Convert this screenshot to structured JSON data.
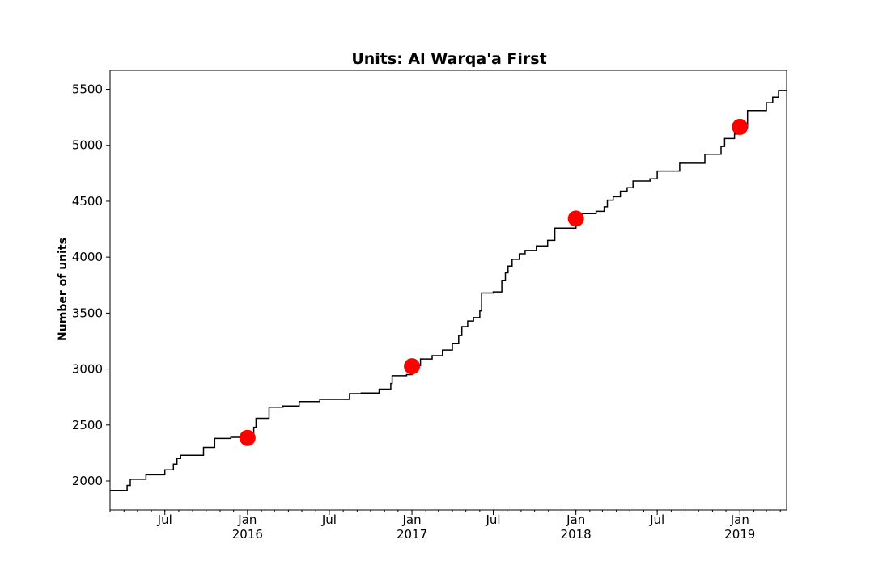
{
  "chart_data": {
    "type": "line",
    "title": "Units: Al Warqa'a First",
    "xlabel": "",
    "ylabel": "Number of units",
    "xlim": [
      "2015-03-01",
      "2019-04-15"
    ],
    "ylim": [
      1740,
      5670
    ],
    "yticks": [
      2000,
      2500,
      3000,
      3500,
      4000,
      4500,
      5000,
      5500
    ],
    "xticks": [
      {
        "date": "2015-07-01",
        "label": "Jul",
        "sublabel": ""
      },
      {
        "date": "2016-01-01",
        "label": "Jan",
        "sublabel": "2016"
      },
      {
        "date": "2016-07-01",
        "label": "Jul",
        "sublabel": ""
      },
      {
        "date": "2017-01-01",
        "label": "Jan",
        "sublabel": "2017"
      },
      {
        "date": "2017-07-01",
        "label": "Jul",
        "sublabel": ""
      },
      {
        "date": "2018-01-01",
        "label": "Jan",
        "sublabel": "2018"
      },
      {
        "date": "2018-07-01",
        "label": "Jul",
        "sublabel": ""
      },
      {
        "date": "2019-01-01",
        "label": "Jan",
        "sublabel": "2019"
      }
    ],
    "grid": false,
    "series": [
      {
        "style": "step",
        "color": "#000000",
        "points": [
          [
            "2015-03-01",
            1915
          ],
          [
            "2015-04-08",
            1960
          ],
          [
            "2015-04-15",
            2015
          ],
          [
            "2015-05-20",
            2055
          ],
          [
            "2015-07-01",
            2100
          ],
          [
            "2015-07-20",
            2150
          ],
          [
            "2015-07-28",
            2200
          ],
          [
            "2015-08-05",
            2230
          ],
          [
            "2015-09-25",
            2300
          ],
          [
            "2015-10-20",
            2380
          ],
          [
            "2015-11-25",
            2390
          ],
          [
            "2016-01-01",
            2420
          ],
          [
            "2016-01-15",
            2480
          ],
          [
            "2016-01-20",
            2560
          ],
          [
            "2016-02-18",
            2660
          ],
          [
            "2016-03-20",
            2670
          ],
          [
            "2016-04-25",
            2710
          ],
          [
            "2016-06-10",
            2730
          ],
          [
            "2016-08-15",
            2780
          ],
          [
            "2016-09-10",
            2785
          ],
          [
            "2016-10-20",
            2820
          ],
          [
            "2016-11-15",
            2870
          ],
          [
            "2016-11-18",
            2940
          ],
          [
            "2016-12-20",
            2950
          ],
          [
            "2017-01-01",
            3030
          ],
          [
            "2017-01-20",
            3090
          ],
          [
            "2017-02-15",
            3120
          ],
          [
            "2017-03-10",
            3170
          ],
          [
            "2017-04-01",
            3230
          ],
          [
            "2017-04-15",
            3300
          ],
          [
            "2017-04-22",
            3380
          ],
          [
            "2017-05-05",
            3430
          ],
          [
            "2017-05-18",
            3460
          ],
          [
            "2017-06-01",
            3520
          ],
          [
            "2017-06-05",
            3680
          ],
          [
            "2017-07-01",
            3690
          ],
          [
            "2017-07-20",
            3790
          ],
          [
            "2017-07-28",
            3860
          ],
          [
            "2017-08-03",
            3920
          ],
          [
            "2017-08-12",
            3980
          ],
          [
            "2017-08-28",
            4030
          ],
          [
            "2017-09-10",
            4060
          ],
          [
            "2017-10-05",
            4100
          ],
          [
            "2017-10-30",
            4150
          ],
          [
            "2017-11-15",
            4260
          ],
          [
            "2018-01-01",
            4340
          ],
          [
            "2018-01-15",
            4390
          ],
          [
            "2018-02-15",
            4410
          ],
          [
            "2018-03-05",
            4450
          ],
          [
            "2018-03-12",
            4510
          ],
          [
            "2018-03-25",
            4540
          ],
          [
            "2018-04-10",
            4590
          ],
          [
            "2018-04-25",
            4620
          ],
          [
            "2018-05-08",
            4680
          ],
          [
            "2018-06-15",
            4700
          ],
          [
            "2018-07-01",
            4770
          ],
          [
            "2018-08-20",
            4840
          ],
          [
            "2018-10-15",
            4920
          ],
          [
            "2018-11-20",
            4990
          ],
          [
            "2018-11-28",
            5060
          ],
          [
            "2018-12-20",
            5100
          ],
          [
            "2019-01-01",
            5160
          ],
          [
            "2019-01-18",
            5310
          ],
          [
            "2019-03-01",
            5380
          ],
          [
            "2019-03-15",
            5430
          ],
          [
            "2019-03-28",
            5490
          ],
          [
            "2019-04-15",
            5490
          ]
        ]
      },
      {
        "style": "markers",
        "color": "#ff0000",
        "points": [
          [
            "2016-01-01",
            2385
          ],
          [
            "2017-01-01",
            3025
          ],
          [
            "2018-01-01",
            4345
          ],
          [
            "2019-01-01",
            5165
          ]
        ]
      }
    ]
  }
}
